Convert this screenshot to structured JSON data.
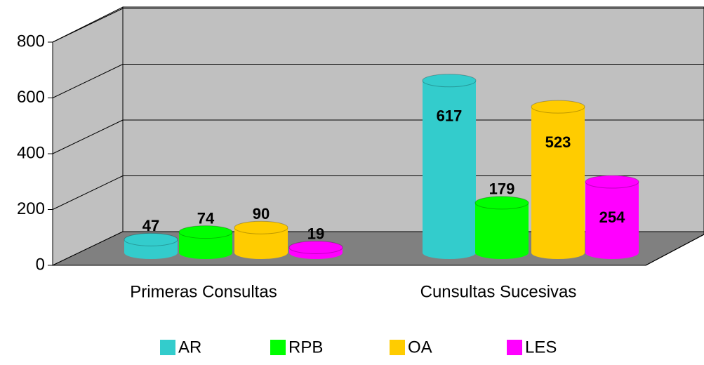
{
  "chart_data": {
    "type": "bar3d",
    "categories": [
      "Primeras Consultas",
      "Cunsultas Sucesivas"
    ],
    "series": [
      {
        "name": "AR",
        "color": "#33cccc",
        "values": [
          47,
          617
        ]
      },
      {
        "name": "RPB",
        "color": "#00ff00",
        "values": [
          74,
          179
        ]
      },
      {
        "name": "OA",
        "color": "#ffcc00",
        "values": [
          90,
          523
        ]
      },
      {
        "name": "LES",
        "color": "#ff00ff",
        "values": [
          19,
          254
        ]
      }
    ],
    "ylim": [
      0,
      800
    ],
    "yticks": [
      0,
      200,
      400,
      600,
      800
    ],
    "grid": true,
    "legend": "bottom"
  }
}
